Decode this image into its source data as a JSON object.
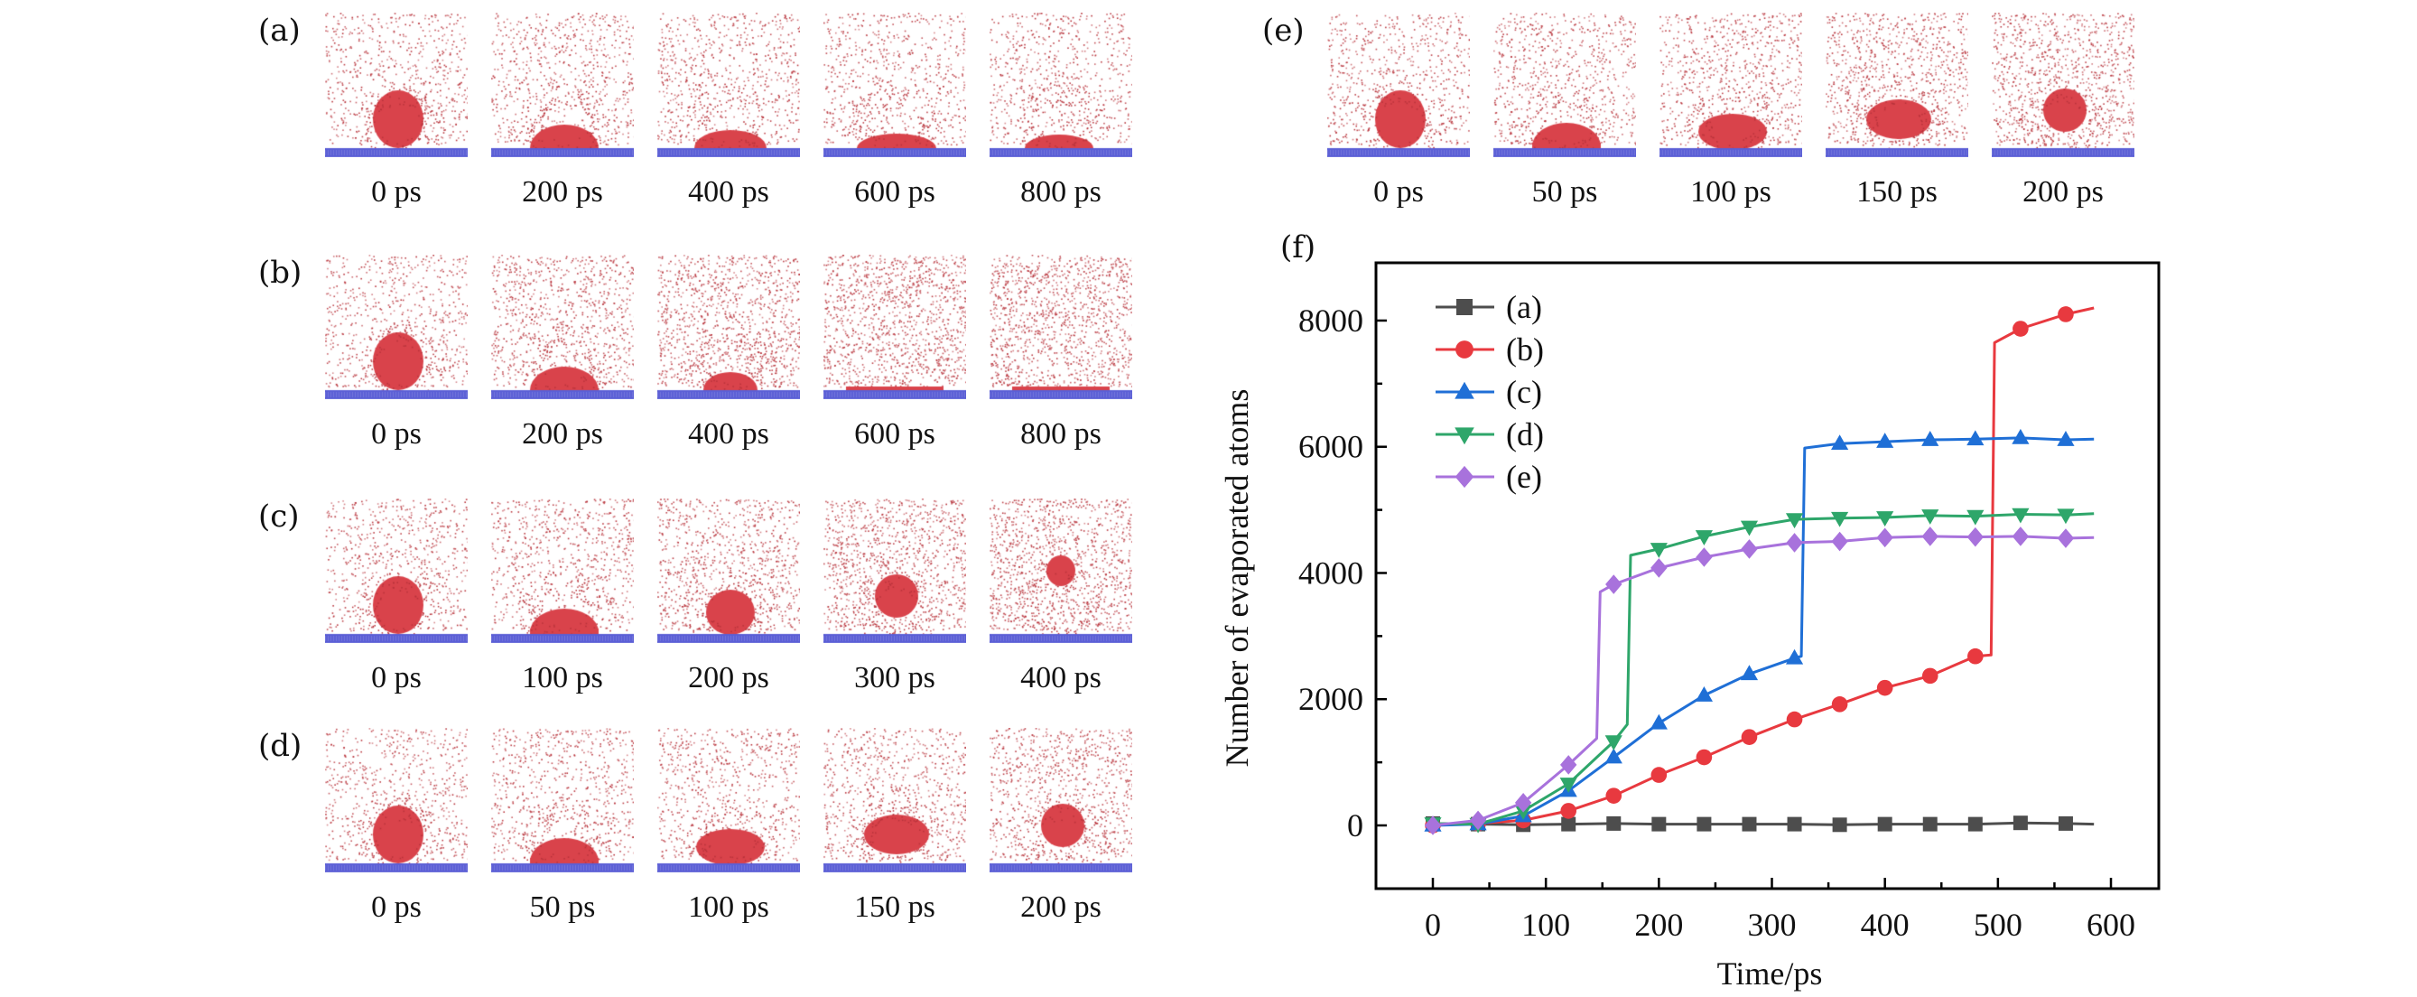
{
  "figure": {
    "snapshot_rows": [
      {
        "label": "(a)",
        "times": [
          "0 ps",
          "200 ps",
          "400 ps",
          "600 ps",
          "800 ps"
        ],
        "states": [
          "sphere",
          "cap-large",
          "cap-medium",
          "cap-flat",
          "cap-small"
        ],
        "vapor": [
          0.35,
          0.4,
          0.4,
          0.35,
          0.35
        ]
      },
      {
        "label": "(b)",
        "times": [
          "0 ps",
          "200 ps",
          "400 ps",
          "600 ps",
          "800 ps"
        ],
        "states": [
          "sphere",
          "cap-large",
          "cap-fuzzy",
          "film",
          "film"
        ],
        "vapor": [
          0.35,
          0.6,
          0.8,
          0.95,
          0.95
        ]
      },
      {
        "label": "(c)",
        "times": [
          "0 ps",
          "100 ps",
          "200 ps",
          "300 ps",
          "400 ps"
        ],
        "states": [
          "sphere",
          "dome-wide",
          "dome-lifting",
          "detached-low",
          "detached-high"
        ],
        "vapor": [
          0.35,
          0.45,
          0.6,
          0.8,
          0.9
        ]
      },
      {
        "label": "(d)",
        "times": [
          "0 ps",
          "50 ps",
          "100 ps",
          "150 ps",
          "200 ps"
        ],
        "states": [
          "sphere",
          "dome-wide",
          "dome-flat",
          "lifting-wide",
          "detached-low"
        ],
        "vapor": [
          0.35,
          0.4,
          0.4,
          0.5,
          0.6
        ]
      },
      {
        "label": "(e)",
        "times": [
          "0 ps",
          "50 ps",
          "100 ps",
          "150 ps",
          "200 ps"
        ],
        "states": [
          "sphere",
          "dome-wide",
          "dome-flat",
          "lifting-wide",
          "detached-low"
        ],
        "vapor": [
          0.35,
          0.4,
          0.45,
          0.6,
          0.7
        ]
      }
    ],
    "chart_panel_label": "(f)",
    "colors": {
      "droplet": "#d9434b",
      "substrate": "#5b5fd6",
      "vapor": "#b8333b"
    }
  },
  "chart_data": {
    "type": "line",
    "title": "",
    "xlabel": "Time/ps",
    "ylabel": "Number of evaporated atoms",
    "xlim": [
      -50,
      650
    ],
    "ylim": [
      -1000,
      9000
    ],
    "xticks": [
      0,
      100,
      200,
      300,
      400,
      500,
      600
    ],
    "xtick_labels": [
      "0",
      "100",
      "200",
      "300",
      "400",
      "500",
      "600"
    ],
    "yticks": [
      0,
      2000,
      4000,
      6000,
      8000
    ],
    "ytick_labels": [
      "0",
      "2000",
      "4000",
      "6000",
      "8000"
    ],
    "grid": false,
    "legend_position": "top-left",
    "marker_x": [
      0,
      40,
      80,
      120,
      160,
      200,
      240,
      280,
      320,
      360,
      400,
      440,
      480,
      520,
      560
    ],
    "series": [
      {
        "name": "(a)",
        "color": "#4d4d4d",
        "marker": "square",
        "x": [
          0,
          40,
          80,
          120,
          160,
          200,
          240,
          280,
          320,
          360,
          400,
          440,
          480,
          520,
          560,
          585
        ],
        "y": [
          30,
          20,
          10,
          20,
          30,
          20,
          20,
          20,
          20,
          10,
          20,
          20,
          20,
          40,
          30,
          20
        ]
      },
      {
        "name": "(b)",
        "color": "#e8393f",
        "marker": "circle",
        "x": [
          0,
          40,
          80,
          120,
          160,
          200,
          240,
          280,
          320,
          360,
          400,
          440,
          480,
          494,
          497,
          520,
          560,
          585
        ],
        "y": [
          0,
          30,
          80,
          230,
          470,
          800,
          1080,
          1400,
          1680,
          1920,
          2180,
          2370,
          2680,
          2700,
          7650,
          7870,
          8100,
          8200
        ]
      },
      {
        "name": "(c)",
        "color": "#1f6fd6",
        "marker": "triangle-up",
        "x": [
          0,
          40,
          80,
          120,
          160,
          200,
          240,
          280,
          320,
          326,
          329,
          360,
          400,
          440,
          480,
          520,
          560,
          585
        ],
        "y": [
          0,
          20,
          150,
          550,
          1080,
          1620,
          2060,
          2400,
          2650,
          2680,
          5980,
          6050,
          6080,
          6110,
          6120,
          6140,
          6110,
          6120
        ]
      },
      {
        "name": "(d)",
        "color": "#2ea66a",
        "marker": "triangle-down",
        "x": [
          0,
          40,
          80,
          120,
          160,
          172,
          175,
          200,
          240,
          280,
          320,
          360,
          400,
          440,
          480,
          520,
          560,
          585
        ],
        "y": [
          30,
          20,
          230,
          660,
          1330,
          1600,
          4280,
          4380,
          4580,
          4730,
          4850,
          4870,
          4880,
          4910,
          4900,
          4930,
          4920,
          4940
        ]
      },
      {
        "name": "(e)",
        "color": "#a872dc",
        "marker": "diamond",
        "x": [
          0,
          40,
          80,
          120,
          145,
          148,
          160,
          200,
          240,
          280,
          320,
          360,
          400,
          440,
          480,
          520,
          560,
          585
        ],
        "y": [
          0,
          80,
          360,
          960,
          1380,
          3700,
          3820,
          4080,
          4250,
          4380,
          4480,
          4500,
          4560,
          4580,
          4570,
          4580,
          4550,
          4560
        ]
      }
    ]
  }
}
